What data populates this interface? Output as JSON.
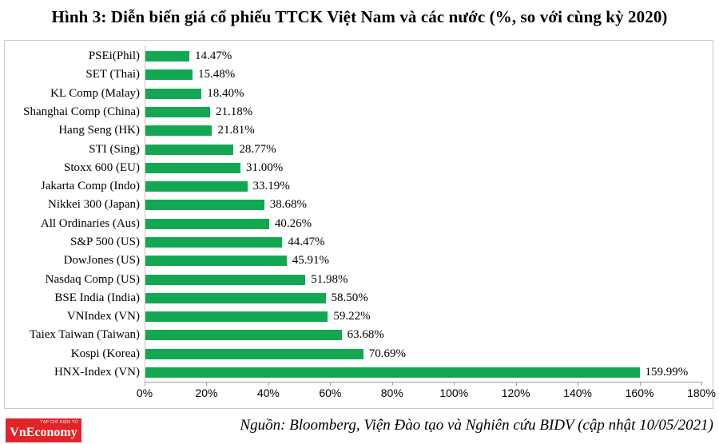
{
  "source_note": "Nguồn: Bloomberg, Viện Đào tạo và Nghiên cứu BIDV (cập nhật 10/05/2021)",
  "logo": {
    "text": "VnEconomy",
    "tagline": "TẠP CHÍ ĐIỆN TỬ",
    "bg_color": "#e2232a"
  },
  "colors": {
    "bar": "#14a751",
    "axis": "#a0a0a0",
    "axis_light": "#c4c4c4",
    "frame_border": "#c8c8c8"
  },
  "chart_data": {
    "type": "bar",
    "orientation": "horizontal",
    "title": "Hình 3: Diễn biến giá cổ phiếu TTCK Việt Nam và các nước (%, so với cùng kỳ 2020)",
    "categories": [
      "PSEi(Phil)",
      "SET (Thai)",
      "KL Comp (Malay)",
      "Shanghai Comp (China)",
      "Hang Seng (HK)",
      "STI (Sing)",
      "Stoxx 600 (EU)",
      "Jakarta Comp (Indo)",
      "Nikkei 300 (Japan)",
      "All Ordinaries (Aus)",
      "S&P 500 (US)",
      "DowJones (US)",
      "Nasdaq Comp (US)",
      "BSE India (India)",
      "VNIndex (VN)",
      "Taiex Taiwan (Taiwan)",
      "Kospi (Korea)",
      "HNX-Index (VN)"
    ],
    "values": [
      14.47,
      15.48,
      18.4,
      21.18,
      21.81,
      28.77,
      31.0,
      33.19,
      38.68,
      40.26,
      44.47,
      45.91,
      51.98,
      58.5,
      59.22,
      63.68,
      70.69,
      159.99
    ],
    "value_labels": [
      "14.47%",
      "15.48%",
      "18.40%",
      "21.18%",
      "21.81%",
      "28.77%",
      "31.00%",
      "33.19%",
      "38.68%",
      "40.26%",
      "44.47%",
      "45.91%",
      "51.98%",
      "58.50%",
      "59.22%",
      "63.68%",
      "70.69%",
      "159.99%"
    ],
    "xlim": [
      0,
      180
    ],
    "x_ticks": [
      "0%",
      "20%",
      "40%",
      "60%",
      "80%",
      "100%",
      "120%",
      "140%",
      "160%",
      "180%"
    ],
    "xlabel": "",
    "ylabel": "",
    "grid": false,
    "legend": false,
    "bar_color": "#14a751"
  }
}
